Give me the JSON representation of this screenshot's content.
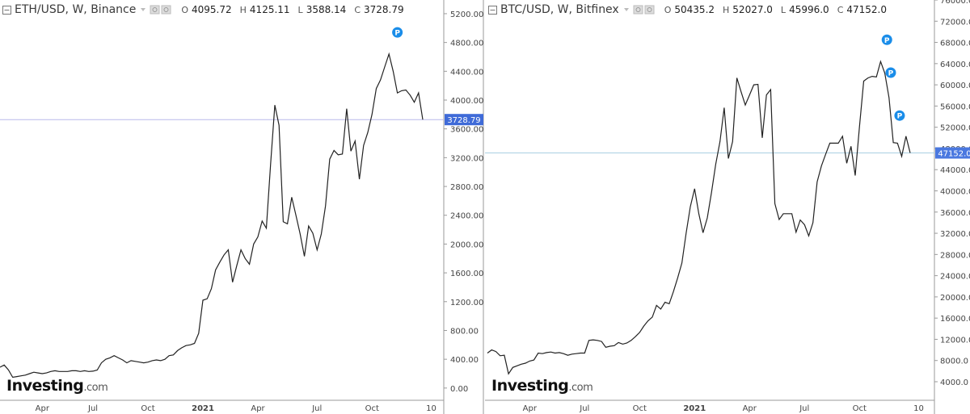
{
  "chart_data": [
    {
      "type": "line",
      "title": "ETH/USD, W, Binance",
      "ohlc": [
        {
          "label": "O",
          "value": "4095.72"
        },
        {
          "label": "H",
          "value": "4125.11"
        },
        {
          "label": "L",
          "value": "3588.14"
        },
        {
          "label": "C",
          "value": "3728.79"
        }
      ],
      "brand": "Investing",
      "brand_suffix": ".com",
      "color": "#222222",
      "price_line_color": "#b9b9ea",
      "price_label_color": "#3f6bd8",
      "price_line": 3728.79,
      "categories": [
        null,
        null,
        null,
        null,
        null,
        null,
        null,
        null,
        null,
        null,
        "Apr",
        null,
        null,
        null,
        null,
        null,
        null,
        null,
        null,
        null,
        null,
        null,
        "Jul",
        null,
        null,
        null,
        null,
        null,
        null,
        null,
        null,
        null,
        null,
        null,
        null,
        "Oct",
        null,
        null,
        null,
        null,
        null,
        null,
        null,
        null,
        null,
        null,
        null,
        null,
        "2021",
        null,
        null,
        null,
        null,
        null,
        null,
        null,
        null,
        null,
        null,
        null,
        null,
        "Apr",
        null,
        null,
        null,
        null,
        null,
        null,
        null,
        null,
        null,
        null,
        null,
        null,
        null,
        "Jul",
        null,
        null,
        null,
        null,
        null,
        null,
        null,
        null,
        null,
        null,
        null,
        null,
        "Oct",
        null,
        null,
        null,
        null,
        null,
        null,
        null,
        null,
        null,
        null,
        null,
        null,
        null,
        "10"
      ],
      "values": [
        290,
        320,
        250,
        150,
        160,
        170,
        180,
        200,
        220,
        210,
        200,
        210,
        230,
        240,
        230,
        230,
        230,
        240,
        240,
        230,
        240,
        230,
        235,
        250,
        350,
        400,
        420,
        450,
        420,
        390,
        350,
        380,
        370,
        360,
        350,
        360,
        380,
        390,
        380,
        400,
        450,
        460,
        520,
        560,
        590,
        600,
        620,
        760,
        1220,
        1240,
        1380,
        1640,
        1750,
        1850,
        1920,
        1470,
        1700,
        1920,
        1800,
        1720,
        2000,
        2100,
        2320,
        2220,
        3100,
        3930,
        3650,
        2310,
        2280,
        2650,
        2400,
        2140,
        1830,
        2250,
        2150,
        1920,
        2140,
        2530,
        3180,
        3300,
        3240,
        3250,
        3880,
        3290,
        3430,
        2900,
        3370,
        3550,
        3800,
        4160,
        4280,
        4460,
        4640,
        4400,
        4100,
        4130,
        4140,
        4070,
        3970,
        4100,
        3728.79,
        null,
        null
      ],
      "markers": [
        {
          "text": "P",
          "index": 94,
          "value": 4940
        }
      ],
      "ylim": [
        -170,
        5390
      ],
      "yticks": [
        {
          "value": 0,
          "label": "0.00"
        },
        {
          "value": 400,
          "label": "400.00"
        },
        {
          "value": 800,
          "label": "800.00"
        },
        {
          "value": 1200,
          "label": "1200.00"
        },
        {
          "value": 1600,
          "label": "1600.00"
        },
        {
          "value": 2000,
          "label": "2000.00"
        },
        {
          "value": 2400,
          "label": "2400.00"
        },
        {
          "value": 2800,
          "label": "2800.00"
        },
        {
          "value": 3200,
          "label": "3200.00"
        },
        {
          "value": 3600,
          "label": "3600.00"
        },
        {
          "value": 4000,
          "label": "4000.00"
        },
        {
          "value": 4400,
          "label": "4400.00"
        },
        {
          "value": 4800,
          "label": "4800.00"
        },
        {
          "value": 5200,
          "label": "5200.00"
        }
      ]
    },
    {
      "type": "line",
      "title": "BTC/USD, W, Bitfinex",
      "ohlc": [
        {
          "label": "O",
          "value": "50435.2"
        },
        {
          "label": "H",
          "value": "52027.0"
        },
        {
          "label": "L",
          "value": "45996.0"
        },
        {
          "label": "C",
          "value": "47152.0"
        }
      ],
      "brand": "Investing",
      "brand_suffix": ".com",
      "color": "#222222",
      "price_line_color": "#a9d0e2",
      "price_label_color": "#4a78e0",
      "price_line": {
        "value": 47152,
        "label": "47152.0"
      },
      "categories": [
        null,
        null,
        null,
        null,
        null,
        null,
        null,
        null,
        null,
        null,
        "Apr",
        null,
        null,
        null,
        null,
        null,
        null,
        null,
        null,
        null,
        null,
        null,
        null,
        "Jul",
        null,
        null,
        null,
        null,
        null,
        null,
        null,
        null,
        null,
        null,
        null,
        null,
        "Oct",
        null,
        null,
        null,
        null,
        null,
        null,
        null,
        null,
        null,
        null,
        null,
        null,
        "2021",
        null,
        null,
        null,
        null,
        null,
        null,
        null,
        null,
        null,
        null,
        null,
        null,
        "Apr",
        null,
        null,
        null,
        null,
        null,
        null,
        null,
        null,
        null,
        null,
        null,
        null,
        "Jul",
        null,
        null,
        null,
        null,
        null,
        null,
        null,
        null,
        null,
        null,
        null,
        null,
        "Oct",
        null,
        null,
        null,
        null,
        null,
        null,
        null,
        null,
        null,
        null,
        null,
        null,
        null,
        "10"
      ],
      "values": [
        9400,
        10000,
        9700,
        8900,
        9000,
        5500,
        6700,
        7000,
        7300,
        7500,
        7900,
        8100,
        9400,
        9300,
        9500,
        9600,
        9400,
        9500,
        9300,
        9000,
        9200,
        9300,
        9400,
        9400,
        11800,
        11900,
        11800,
        11600,
        10500,
        10700,
        10800,
        11400,
        11100,
        11300,
        11800,
        12500,
        13300,
        14500,
        15500,
        16200,
        18400,
        17700,
        19000,
        18700,
        21000,
        23600,
        26400,
        32000,
        37000,
        40400,
        35700,
        32100,
        34900,
        39700,
        45000,
        49300,
        55700,
        46100,
        49300,
        61300,
        58700,
        56200,
        58100,
        60000,
        60100,
        50000,
        58100,
        59100,
        37600,
        34600,
        35700,
        35700,
        35700,
        32200,
        34500,
        33600,
        31500,
        34000,
        41700,
        44700,
        46900,
        49000,
        49000,
        49000,
        50300,
        45200,
        48400,
        42900,
        52000,
        60700,
        61300,
        61600,
        61500,
        64400,
        62200,
        57600,
        49100,
        49000,
        46500,
        50300,
        47152,
        null,
        null
      ],
      "markers": [
        {
          "text": "P",
          "index": 94.5,
          "value": 68500
        },
        {
          "text": "P",
          "index": 95.4,
          "value": 62300
        },
        {
          "text": "P",
          "index": 97.5,
          "value": 54200
        }
      ],
      "ylim": [
        500,
        76000
      ],
      "yticks": [
        {
          "value": 4000,
          "label": "4000.0"
        },
        {
          "value": 8000,
          "label": "8000.0"
        },
        {
          "value": 12000,
          "label": "12000.0"
        },
        {
          "value": 16000,
          "label": "16000.0"
        },
        {
          "value": 20000,
          "label": "20000.0"
        },
        {
          "value": 24000,
          "label": "24000.0"
        },
        {
          "value": 28000,
          "label": "28000.0"
        },
        {
          "value": 32000,
          "label": "32000.0"
        },
        {
          "value": 36000,
          "label": "36000.0"
        },
        {
          "value": 40000,
          "label": "40000.0"
        },
        {
          "value": 44000,
          "label": "44000.0"
        },
        {
          "value": 48000,
          "label": "48000.0"
        },
        {
          "value": 52000,
          "label": "52000.0"
        },
        {
          "value": 56000,
          "label": "56000.0"
        },
        {
          "value": 60000,
          "label": "60000.0"
        },
        {
          "value": 64000,
          "label": "64000.0"
        },
        {
          "value": 68000,
          "label": "68000.0"
        },
        {
          "value": 72000,
          "label": "72000.0"
        },
        {
          "value": 76000,
          "label": "76000.0"
        }
      ]
    }
  ]
}
